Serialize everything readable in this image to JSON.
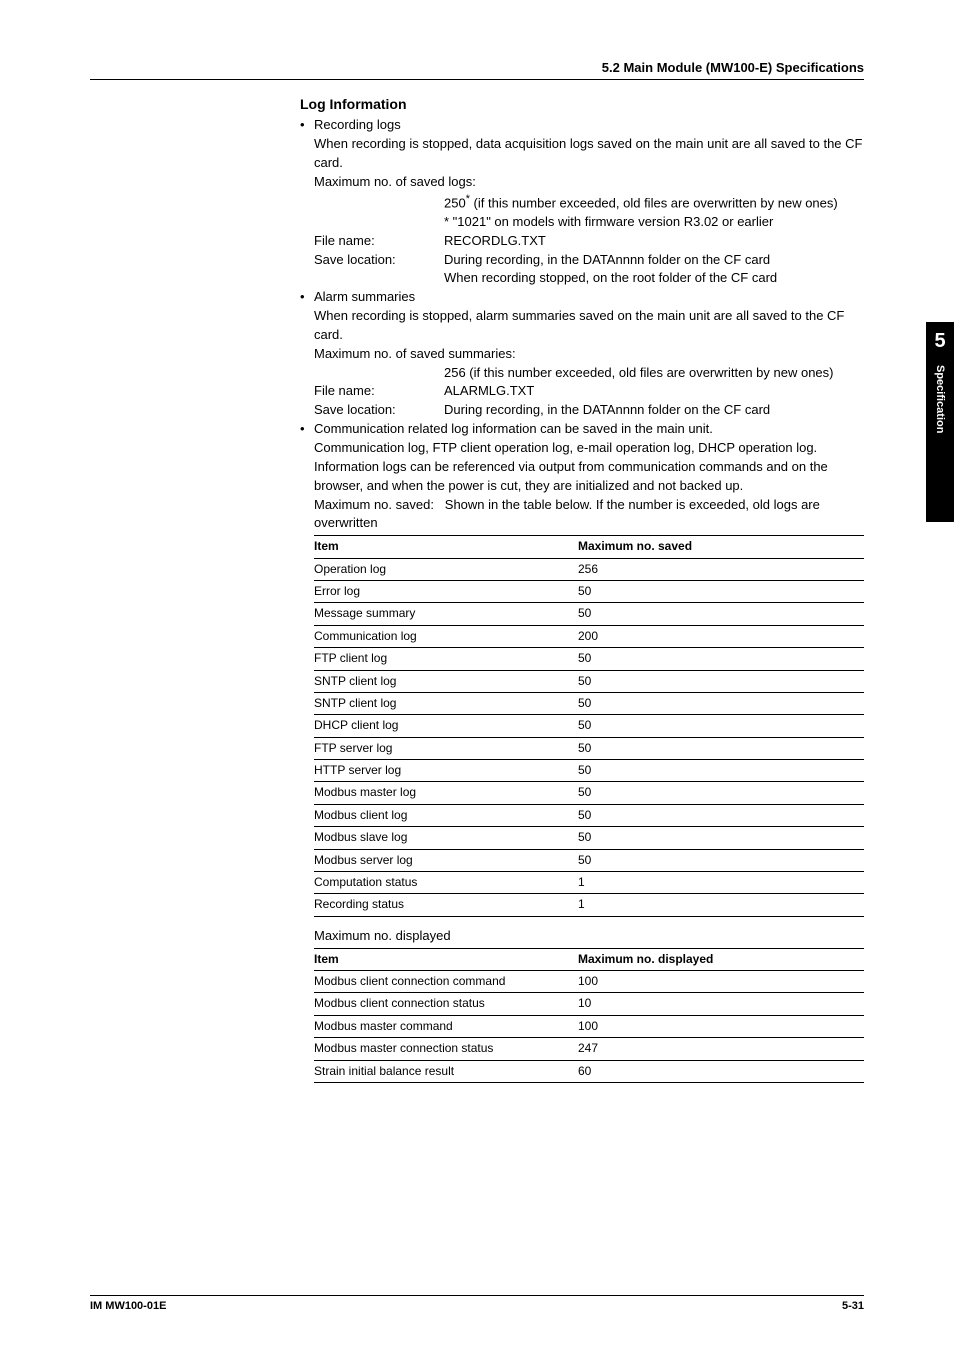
{
  "header": {
    "section": "5.2  Main Module (MW100-E) Specifications"
  },
  "log_info": {
    "heading": "Log Information",
    "recording": {
      "title": "Recording logs",
      "desc1": "When recording is stopped, data acquisition logs saved on the main unit are all saved to the CF card.",
      "max_label": "Maximum no. of saved logs:",
      "max_val1": "250",
      "max_val1_suffix": " (if this number exceeded, old files are overwritten by new ones)",
      "max_note": "*  \"1021\" on models with firmware version R3.02 or earlier",
      "file_k": "File name:",
      "file_v": "RECORDLG.TXT",
      "save_k": "Save location:",
      "save_v1": "During recording, in the DATAnnnn folder on the CF card",
      "save_v2": "When recording stopped, on the root folder of the CF card"
    },
    "alarm": {
      "title": "Alarm summaries",
      "desc1": "When recording is stopped, alarm summaries saved on the main unit are all saved to the CF card.",
      "max_label": "Maximum no. of saved summaries:",
      "max_val": "256 (if this number exceeded, old files are overwritten by new ones)",
      "file_k": "File name:",
      "file_v": "ALARMLG.TXT",
      "save_k": "Save location:",
      "save_v": "During recording, in the DATAnnnn folder on the CF card"
    },
    "comm": {
      "title": "Communication related log information can be saved in the main unit.",
      "desc": "Communication log, FTP client operation log, e-mail operation log, DHCP operation log. Information logs can be referenced via output from communication commands and on the browser, and when the power is cut, they are initialized and not backed up.",
      "max_k": "Maximum no. saved:",
      "max_v": "Shown in the table below. If the number is exceeded, old logs are overwritten"
    }
  },
  "table1": {
    "h1": "Item",
    "h2": "Maximum no. saved",
    "rows": [
      {
        "a": "Operation log",
        "b": "256"
      },
      {
        "a": "Error log",
        "b": "50"
      },
      {
        "a": "Message summary",
        "b": "50"
      },
      {
        "a": "Communication log",
        "b": "200"
      },
      {
        "a": "FTP client log",
        "b": "50"
      },
      {
        "a": "SNTP client log",
        "b": "50"
      },
      {
        "a": "SNTP client log",
        "b": "50"
      },
      {
        "a": "DHCP client log",
        "b": "50"
      },
      {
        "a": "FTP server log",
        "b": "50"
      },
      {
        "a": "HTTP server log",
        "b": "50"
      },
      {
        "a": "Modbus master log",
        "b": "50"
      },
      {
        "a": "Modbus client log",
        "b": "50"
      },
      {
        "a": "Modbus slave log",
        "b": "50"
      },
      {
        "a": "Modbus server log",
        "b": "50"
      },
      {
        "a": "Computation status",
        "b": "1"
      },
      {
        "a": "Recording status",
        "b": "1"
      }
    ]
  },
  "table2_heading": "Maximum no. displayed",
  "table2": {
    "h1": "Item",
    "h2": "Maximum no. displayed",
    "rows": [
      {
        "a": "Modbus client connection command",
        "b": "100"
      },
      {
        "a": "Modbus client connection status",
        "b": "10"
      },
      {
        "a": "Modbus master command",
        "b": "100"
      },
      {
        "a": "Modbus master connection status",
        "b": "247"
      },
      {
        "a": "Strain initial balance result",
        "b": "60"
      }
    ]
  },
  "sidetab": {
    "num": "5",
    "label": "Specification"
  },
  "footer": {
    "left": "IM MW100-01E",
    "right": "5-31"
  }
}
